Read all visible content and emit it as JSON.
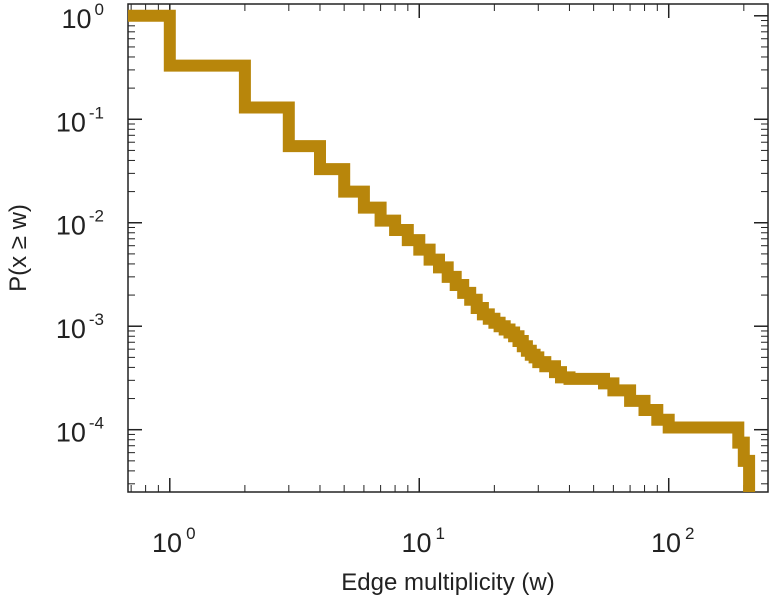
{
  "chart_data": {
    "type": "line",
    "title": "",
    "xlabel": "Edge multiplicity (w)",
    "ylabel": "P(x ≥ w)",
    "xscale": "log",
    "yscale": "log",
    "xlim": [
      0.68,
      250
    ],
    "ylim": [
      2.5e-05,
      1.3
    ],
    "grid": false,
    "legend": "none",
    "series": [
      {
        "color": "#b8860b",
        "step": "post",
        "x": [
          0.68,
          1,
          2,
          3,
          4,
          5,
          6,
          7,
          8,
          9,
          10,
          11,
          12,
          13,
          14,
          15,
          16,
          17,
          18,
          19,
          20,
          21,
          22,
          23,
          24,
          25,
          26,
          27,
          28,
          29,
          30,
          32,
          35,
          37,
          40,
          45,
          50,
          55,
          60,
          70,
          80,
          90,
          100,
          120,
          150,
          180,
          190,
          200,
          210
        ],
        "y": [
          1.0,
          0.33,
          0.13,
          0.055,
          0.033,
          0.02,
          0.014,
          0.0105,
          0.0085,
          0.0068,
          0.0055,
          0.0044,
          0.0037,
          0.003,
          0.0025,
          0.0021,
          0.0018,
          0.0015,
          0.0013,
          0.00118,
          0.00108,
          0.001,
          0.00093,
          0.00087,
          0.0008,
          0.00072,
          0.00064,
          0.00058,
          0.00053,
          0.0005,
          0.00045,
          0.00041,
          0.00036,
          0.00032,
          0.00031,
          0.00031,
          0.00031,
          0.00028,
          0.00024,
          0.00019,
          0.000155,
          0.000125,
          0.000105,
          0.000105,
          0.000105,
          0.000105,
          7.5e-05,
          5e-05,
          3.2e-05
        ]
      }
    ],
    "x_ticks": [
      {
        "label": "10",
        "exp": "0",
        "value": 1
      },
      {
        "label": "10",
        "exp": "1",
        "value": 10
      },
      {
        "label": "10",
        "exp": "2",
        "value": 100
      }
    ],
    "y_ticks": [
      {
        "label": "10",
        "exp": "0",
        "value": 1
      },
      {
        "label": "10",
        "exp": "-1",
        "value": 0.1
      },
      {
        "label": "10",
        "exp": "-2",
        "value": 0.01
      },
      {
        "label": "10",
        "exp": "-3",
        "value": 0.001
      },
      {
        "label": "10",
        "exp": "-4",
        "value": 0.0001
      }
    ]
  }
}
